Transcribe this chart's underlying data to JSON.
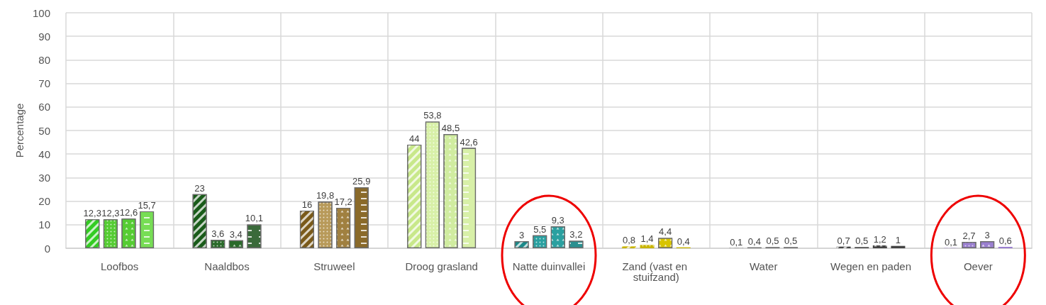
{
  "chart_data": {
    "type": "bar",
    "ylabel": "Percentage",
    "categories": [
      "Loofbos",
      "Naaldbos",
      "Struweel",
      "Droog grasland",
      "Natte duinvallei",
      "Zand (vast en stuifzand)",
      "Water",
      "Wegen en paden",
      "Oever"
    ],
    "series": [
      {
        "values": [
          12.3,
          23,
          16,
          44,
          3,
          0.8,
          0.1,
          0.7,
          0.1
        ],
        "value_labels": [
          "12,3",
          "23",
          "16",
          "44",
          "3",
          "0,8",
          "0,1",
          "0,7",
          "0,1"
        ],
        "colors": [
          "#33cc22",
          "#1a5c1a",
          "#7a5a1a",
          "#c8e88a",
          "#1a8a8a",
          "#c8b400",
          "#666666",
          "#444444",
          "#9a7fd0"
        ]
      },
      {
        "values": [
          12.3,
          3.6,
          19.8,
          53.8,
          5.5,
          1.4,
          0.4,
          0.5,
          2.7
        ],
        "value_labels": [
          "12,3",
          "3,6",
          "19,8",
          "53,8",
          "5,5",
          "1,4",
          "0,4",
          "0,5",
          "2,7"
        ],
        "colors": [
          "#55cc33",
          "#2a6a2a",
          "#b89a5a",
          "#d8f0a8",
          "#2aa0a0",
          "#c8b400",
          "#666666",
          "#444444",
          "#9a7fd0"
        ]
      },
      {
        "values": [
          12.6,
          3.4,
          17.2,
          48.5,
          9.3,
          4.4,
          0.5,
          1.2,
          3
        ],
        "value_labels": [
          "12,6",
          "3,4",
          "17,2",
          "48,5",
          "9,3",
          "4,4",
          "0,5",
          "1,2",
          "3"
        ],
        "colors": [
          "#55cc33",
          "#2a6a2a",
          "#a08040",
          "#d0eca0",
          "#2aa0a0",
          "#d8c400",
          "#666666",
          "#444444",
          "#9a7fd0"
        ]
      },
      {
        "values": [
          15.7,
          10.1,
          25.9,
          42.6,
          3.2,
          0.4,
          0.5,
          1,
          0.6
        ],
        "value_labels": [
          "15,7",
          "10,1",
          "25,9",
          "42,6",
          "3,2",
          "0,4",
          "0,5",
          "1",
          "0,6"
        ],
        "colors": [
          "#77dd55",
          "#3a6a3a",
          "#8a6a2a",
          "#d8f0a8",
          "#2a9090",
          "#c8b400",
          "#666666",
          "#444444",
          "#9a7fd0"
        ]
      }
    ],
    "ylim": [
      0,
      100
    ],
    "yticks": [
      0,
      10,
      20,
      30,
      40,
      50,
      60,
      70,
      80,
      90,
      100
    ],
    "grid": true
  }
}
